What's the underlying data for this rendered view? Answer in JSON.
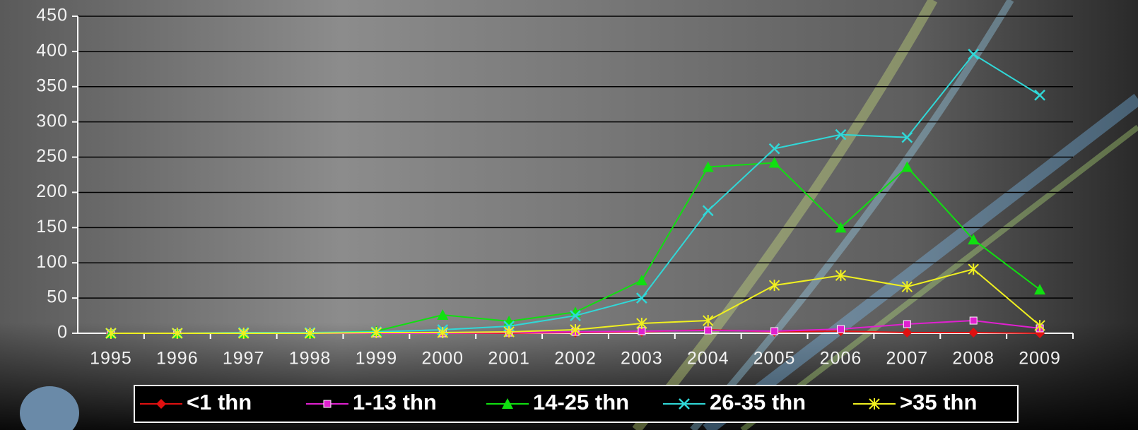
{
  "chart_data": {
    "type": "line",
    "categories": [
      "1995",
      "1996",
      "1997",
      "1998",
      "1999",
      "2000",
      "2001",
      "2002",
      "2003",
      "2004",
      "2005",
      "2006",
      "2007",
      "2008",
      "2009"
    ],
    "series": [
      {
        "name": "<1 thn",
        "color": "#e01010",
        "marker": "diamond",
        "values": [
          0,
          0,
          0,
          0,
          0,
          0,
          0,
          1,
          2,
          5,
          2,
          3,
          1,
          1,
          0
        ]
      },
      {
        "name": "1-13 thn",
        "color": "#e020d0",
        "marker": "square",
        "values": [
          0,
          0,
          0,
          0,
          0,
          0,
          1,
          2,
          3,
          4,
          3,
          6,
          13,
          18,
          7
        ]
      },
      {
        "name": "14-25 thn",
        "color": "#10e010",
        "marker": "triangle",
        "values": [
          0,
          0,
          0,
          0,
          3,
          26,
          17,
          30,
          75,
          236,
          242,
          150,
          236,
          133,
          62
        ]
      },
      {
        "name": "26-35 thn",
        "color": "#30d8d8",
        "marker": "x",
        "values": [
          0,
          0,
          1,
          1,
          2,
          5,
          10,
          25,
          50,
          174,
          262,
          282,
          278,
          396,
          338
        ]
      },
      {
        "name": ">35 thn",
        "color": "#f0f020",
        "marker": "star",
        "values": [
          0,
          0,
          0,
          0,
          1,
          1,
          2,
          5,
          14,
          18,
          68,
          82,
          66,
          91,
          11
        ]
      }
    ],
    "ylim": [
      0,
      450
    ],
    "yticks": [
      0,
      50,
      100,
      150,
      200,
      250,
      300,
      350,
      400,
      450
    ],
    "grid": true,
    "legend": "bottom"
  }
}
